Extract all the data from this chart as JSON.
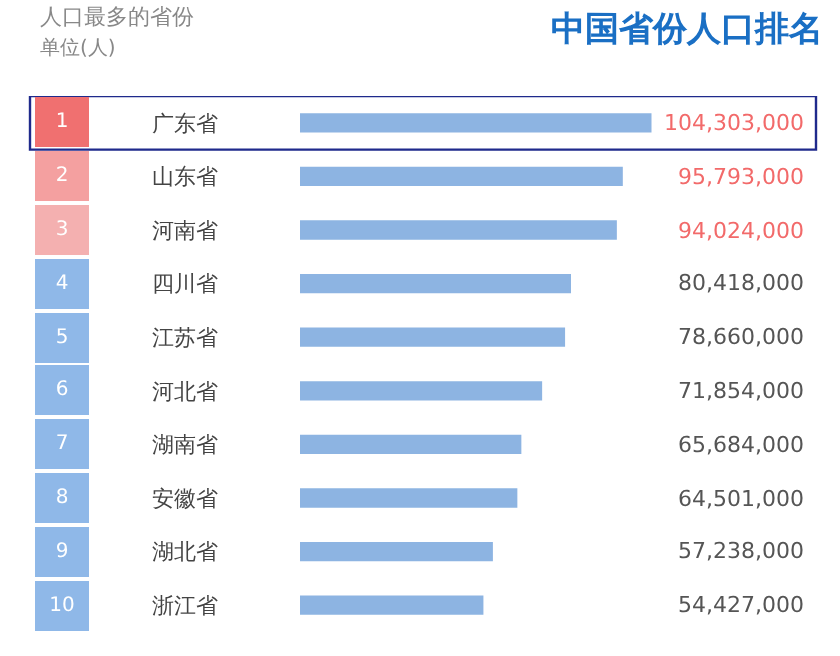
{
  "chart_data": {
    "type": "bar",
    "orientation": "horizontal",
    "title": "中国省份人口排名",
    "subtitle": "人口最多的省份",
    "categories": [
      "广东省",
      "山东省",
      "河南省",
      "四川省",
      "江苏省",
      "河北省",
      "湖南省",
      "安徽省",
      "湖北省",
      "浙江省"
    ],
    "values": [
      104303000,
      95793000,
      94024000,
      80418000,
      78660000,
      71854000,
      65684000,
      64501000,
      57238000,
      54427000
    ],
    "value_labels": [
      "104,303,000",
      "95,793,000",
      "94,024,000",
      "80,418,000",
      "78,660,000",
      "71,854,000",
      "65,684,000",
      "64,501,000",
      "57,238,000",
      "54,427,000"
    ],
    "color": "#8db4e2",
    "grid": false,
    "legend": false,
    "annotations": [
      "单位(人)",
      "1",
      "2",
      "3",
      "4",
      "5",
      "6",
      "7",
      "8",
      "9",
      "10"
    ]
  }
}
